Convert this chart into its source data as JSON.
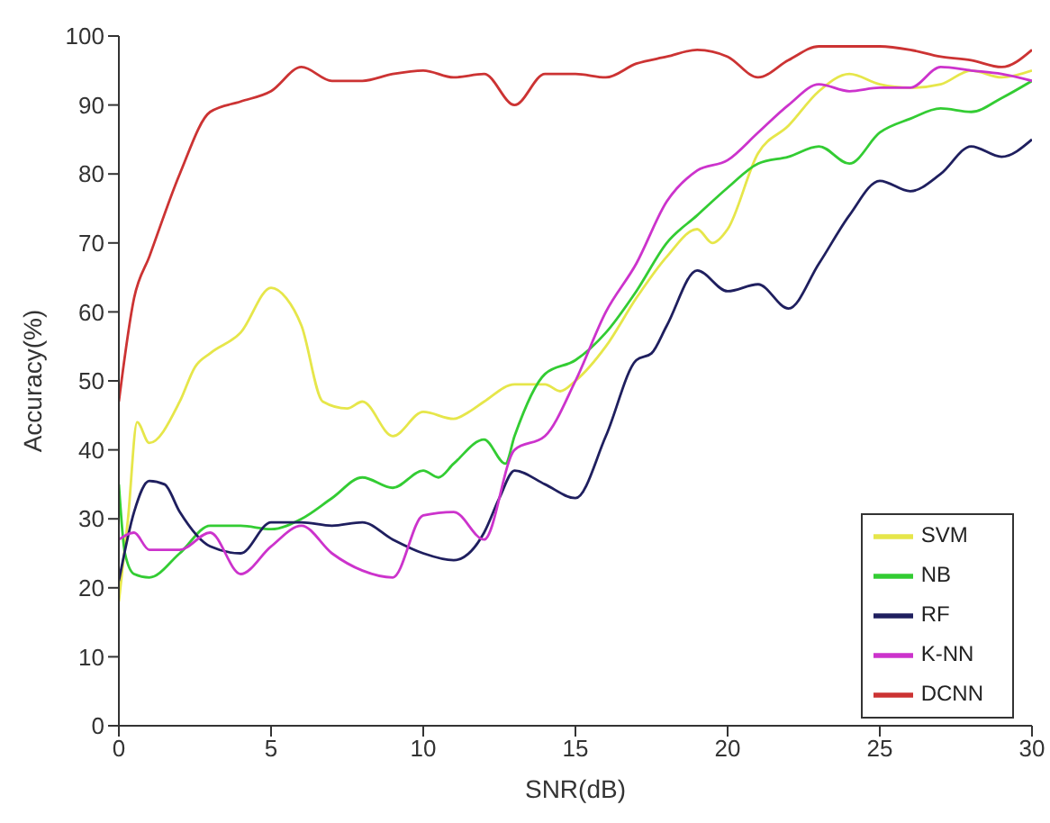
{
  "chart_data": {
    "type": "line",
    "xlabel": "SNR(dB)",
    "ylabel": "Accuracy(%)",
    "xlim": [
      0,
      30
    ],
    "ylim": [
      0,
      100
    ],
    "xticks": [
      0,
      5,
      10,
      15,
      20,
      25,
      30
    ],
    "yticks": [
      0,
      10,
      20,
      30,
      40,
      50,
      60,
      70,
      80,
      90,
      100
    ],
    "grid": false,
    "legend": "bottom right",
    "marker": "none",
    "line_style": "solid",
    "series": [
      {
        "name": "SVM",
        "color": "#e6e64a",
        "x": [
          0,
          0.3,
          0.6,
          1,
          2,
          2.5,
          3,
          4,
          5,
          5.5,
          6,
          6.7,
          7.5,
          8,
          9,
          10,
          11,
          11.5,
          12,
          13,
          14,
          14.5,
          15,
          16,
          17,
          18,
          19,
          19.5,
          20,
          21,
          22,
          23,
          24,
          25,
          26,
          27,
          28,
          29,
          30
        ],
        "values": [
          18,
          30,
          44,
          41,
          47,
          52,
          54,
          57,
          63.5,
          62,
          58,
          47,
          46,
          47,
          42,
          45.5,
          44.5,
          45.5,
          47,
          49.5,
          49.5,
          48.5,
          50,
          55,
          62,
          68,
          72,
          70,
          72,
          83,
          87,
          92,
          94.5,
          93,
          92.5,
          93,
          95,
          94,
          95
        ]
      },
      {
        "name": "NB",
        "color": "#33cc33",
        "x": [
          0,
          0.2,
          0.5,
          1,
          2,
          3,
          4,
          5,
          6,
          7,
          8,
          9,
          10,
          10.5,
          11,
          12,
          12.7,
          13,
          14,
          15,
          16,
          17,
          18,
          19,
          20,
          21,
          22,
          23,
          24,
          25,
          26,
          27,
          28,
          29,
          30
        ],
        "values": [
          35,
          25,
          22,
          21.5,
          25,
          29,
          29,
          28.5,
          30,
          33,
          36,
          34.5,
          37,
          36,
          38,
          41.5,
          38,
          42,
          51,
          53,
          57,
          63,
          70,
          74,
          78,
          81.5,
          82.5,
          84,
          81.5,
          86,
          88,
          89.5,
          89,
          91,
          93.5
        ]
      },
      {
        "name": "RF",
        "color": "#1f1f5f",
        "x": [
          0,
          0.5,
          1,
          1.5,
          2,
          3,
          4,
          5,
          6,
          7,
          8,
          9,
          10,
          11,
          12,
          12.5,
          13,
          14,
          15,
          16,
          17,
          17.5,
          18,
          19,
          20,
          21,
          22,
          23,
          24,
          25,
          26,
          27,
          28,
          29,
          30
        ],
        "values": [
          21,
          31,
          35.5,
          35,
          31,
          26,
          25,
          29.5,
          29.5,
          29,
          29.5,
          27,
          25,
          24,
          28,
          33,
          37,
          35,
          33,
          42,
          53,
          54,
          58,
          66,
          63,
          64,
          60.5,
          67,
          74,
          79,
          77.5,
          80,
          84,
          82.5,
          85
        ]
      },
      {
        "name": "K-NN",
        "color": "#cc33cc",
        "x": [
          0,
          0.5,
          1,
          2,
          3,
          4,
          5,
          6,
          7,
          8,
          9,
          10,
          11,
          12,
          13,
          14,
          15,
          16,
          17,
          18,
          19,
          20,
          21,
          22,
          23,
          24,
          25,
          26,
          27,
          28,
          29,
          30
        ],
        "values": [
          27,
          28,
          25.5,
          25.5,
          28,
          22,
          26,
          29,
          25,
          22.5,
          21.5,
          30.5,
          31,
          27,
          40,
          42,
          50,
          60,
          67,
          76,
          80.5,
          82,
          86,
          90,
          93,
          92,
          92.5,
          92.5,
          95.5,
          95,
          94.5,
          93.5
        ]
      },
      {
        "name": "DCNN",
        "color": "#cc3333",
        "x": [
          0,
          0.5,
          1,
          2,
          3,
          4,
          5,
          6,
          7,
          8,
          9,
          10,
          11,
          12,
          13,
          14,
          15,
          16,
          17,
          18,
          19,
          20,
          21,
          22,
          23,
          24,
          25,
          26,
          27,
          28,
          29,
          30
        ],
        "values": [
          47,
          62,
          68,
          80,
          89,
          90.5,
          92,
          95.5,
          93.5,
          93.5,
          94.5,
          95,
          94,
          94.5,
          90,
          94.5,
          94.5,
          94,
          96,
          97,
          98,
          97,
          94,
          96.5,
          98.5,
          98.5,
          98.5,
          98,
          97,
          96.5,
          95.5,
          98
        ]
      }
    ]
  }
}
